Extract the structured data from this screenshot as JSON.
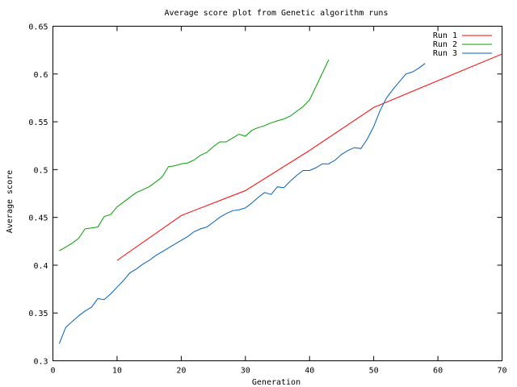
{
  "chart_data": {
    "type": "line",
    "title": "Average score plot from Genetic algorithm runs",
    "xlabel": "Generation",
    "ylabel": "Average score",
    "xlim": [
      0,
      70
    ],
    "ylim": [
      0.3,
      0.65
    ],
    "xticks": [
      0,
      10,
      20,
      30,
      40,
      50,
      60,
      70
    ],
    "xtick_labels": [
      "0",
      "10",
      "20",
      "30",
      "40",
      "50",
      "60",
      "70"
    ],
    "yticks": [
      0.3,
      0.35,
      0.4,
      0.45,
      0.5,
      0.55,
      0.6,
      0.65
    ],
    "ytick_labels": [
      "0.3",
      "0.35",
      "0.4",
      "0.45",
      "0.5",
      "0.55",
      "0.6",
      "0.65"
    ],
    "grid": false,
    "legend_position": "top-right",
    "series": [
      {
        "name": "Run 1",
        "color": "#ff0000",
        "x": [
          10,
          20,
          30,
          40,
          50,
          70
        ],
        "y": [
          0.405,
          0.452,
          0.478,
          0.52,
          0.565,
          0.621
        ]
      },
      {
        "name": "Run 2",
        "color": "#00a000",
        "x": [
          1,
          2,
          3,
          4,
          5,
          6,
          7,
          8,
          9,
          10,
          11,
          12,
          13,
          14,
          15,
          16,
          17,
          18,
          19,
          20,
          21,
          22,
          23,
          24,
          25,
          26,
          27,
          28,
          29,
          30,
          31,
          32,
          33,
          34,
          35,
          36,
          37,
          38,
          39,
          40,
          41,
          42,
          43
        ],
        "y": [
          0.415,
          0.419,
          0.423,
          0.428,
          0.438,
          0.439,
          0.44,
          0.451,
          0.453,
          0.461,
          0.466,
          0.471,
          0.476,
          0.479,
          0.482,
          0.487,
          0.492,
          0.503,
          0.504,
          0.506,
          0.507,
          0.51,
          0.515,
          0.518,
          0.524,
          0.529,
          0.529,
          0.533,
          0.537,
          0.535,
          0.541,
          0.544,
          0.546,
          0.549,
          0.551,
          0.553,
          0.556,
          0.561,
          0.566,
          0.573,
          0.587,
          0.601,
          0.615
        ]
      },
      {
        "name": "Run 3",
        "color": "#0060c0",
        "x": [
          1,
          2,
          3,
          4,
          5,
          6,
          7,
          8,
          9,
          10,
          11,
          12,
          13,
          14,
          15,
          16,
          17,
          18,
          19,
          20,
          21,
          22,
          23,
          24,
          25,
          26,
          27,
          28,
          29,
          30,
          31,
          32,
          33,
          34,
          35,
          36,
          37,
          38,
          39,
          40,
          41,
          42,
          43,
          44,
          45,
          46,
          47,
          48,
          49,
          50,
          51,
          52,
          53,
          54,
          55,
          56,
          57,
          58
        ],
        "y": [
          0.318,
          0.335,
          0.341,
          0.347,
          0.352,
          0.356,
          0.365,
          0.364,
          0.37,
          0.377,
          0.384,
          0.392,
          0.396,
          0.401,
          0.405,
          0.41,
          0.414,
          0.418,
          0.422,
          0.426,
          0.43,
          0.435,
          0.438,
          0.44,
          0.445,
          0.45,
          0.454,
          0.457,
          0.458,
          0.46,
          0.465,
          0.471,
          0.476,
          0.474,
          0.482,
          0.481,
          0.488,
          0.494,
          0.499,
          0.499,
          0.502,
          0.506,
          0.506,
          0.51,
          0.516,
          0.52,
          0.523,
          0.522,
          0.532,
          0.545,
          0.562,
          0.575,
          0.584,
          0.592,
          0.6,
          0.602,
          0.606,
          0.611
        ]
      }
    ]
  }
}
